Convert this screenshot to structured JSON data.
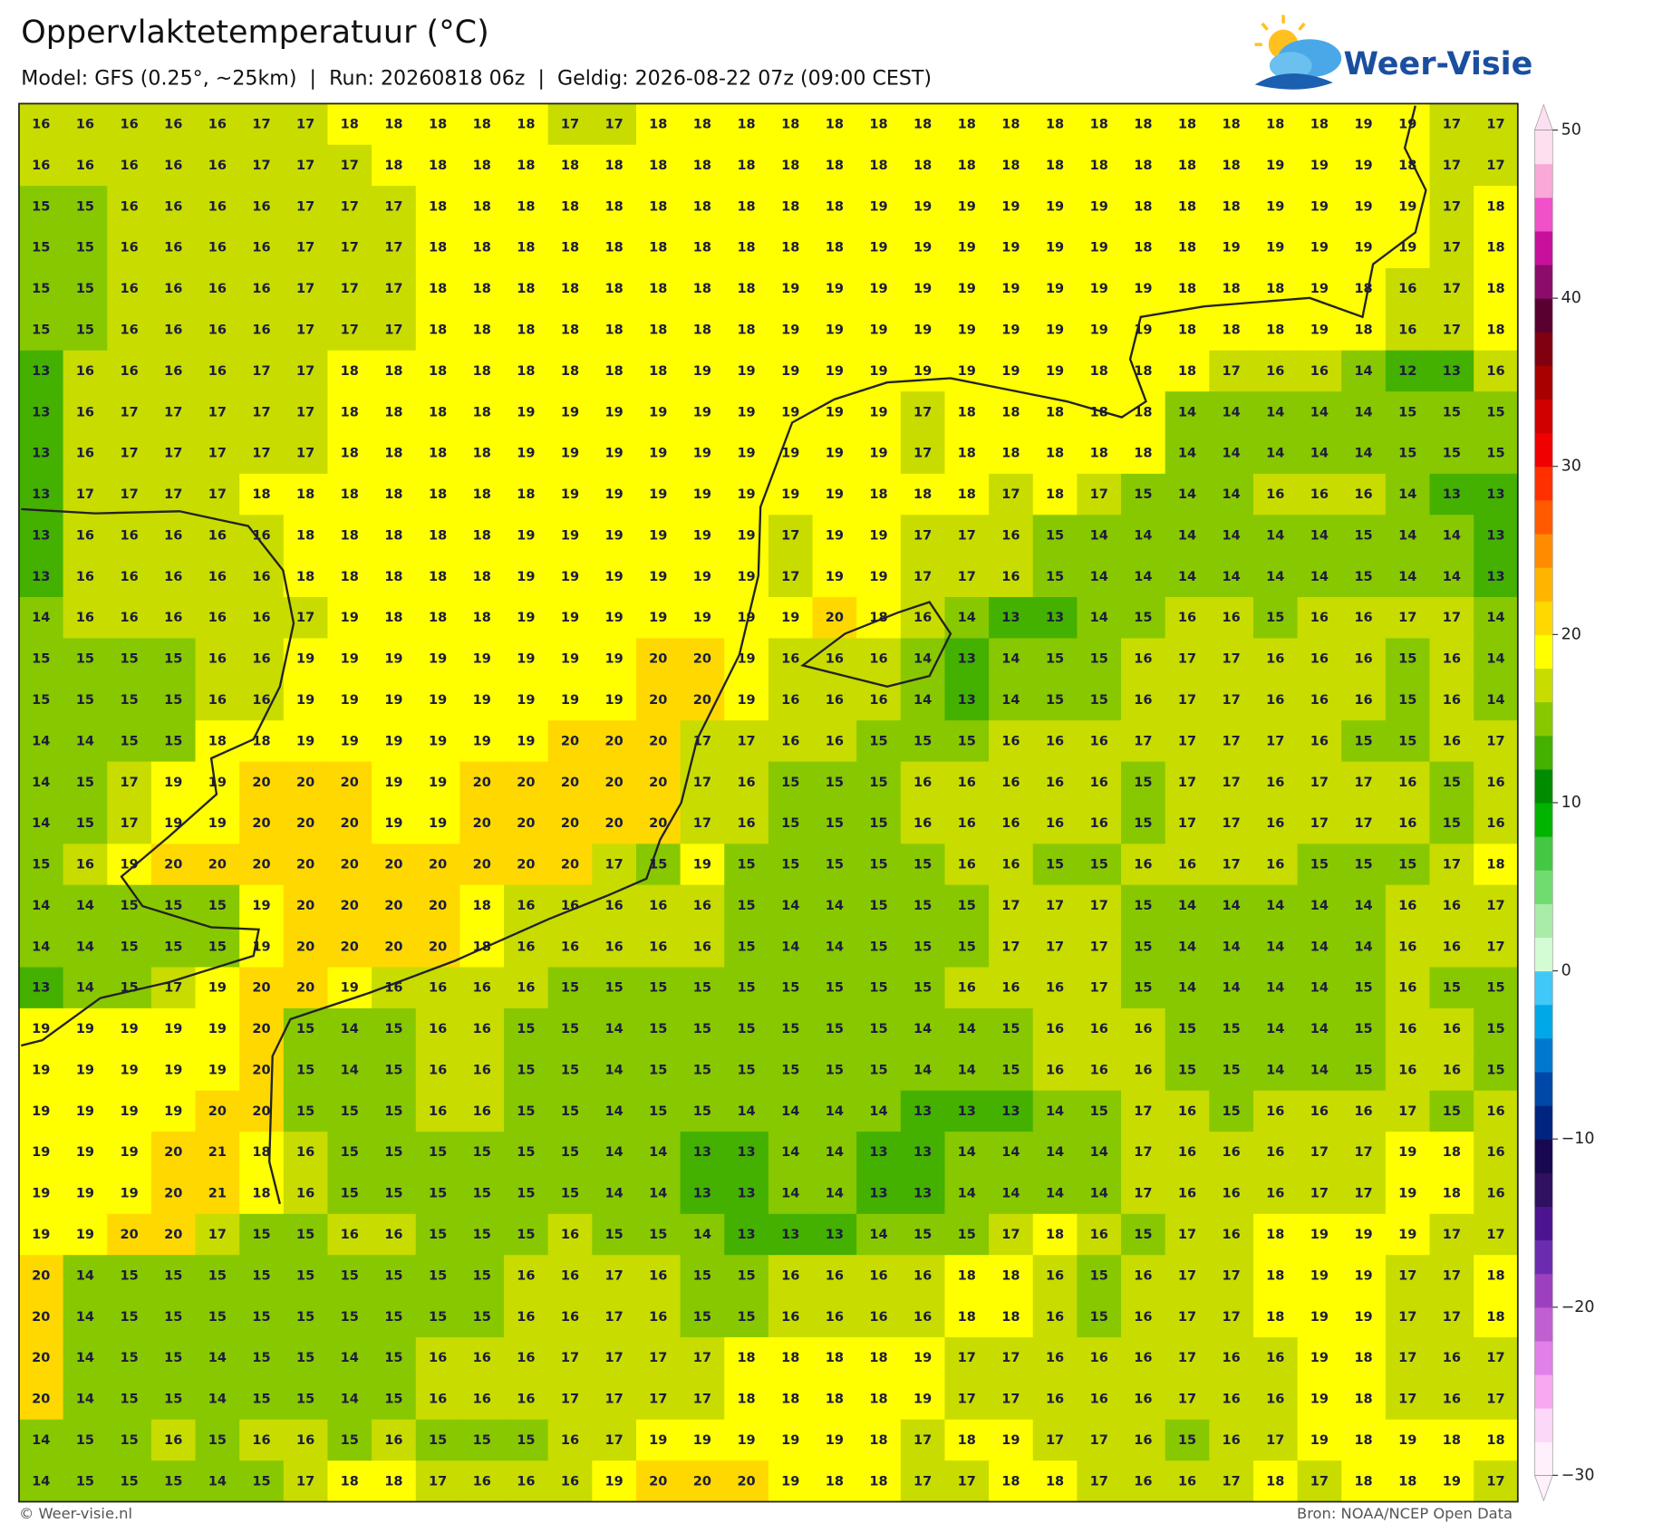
{
  "header": {
    "title": "Oppervlaktetemperatuur (°C)",
    "subtitle": "Model: GFS (0.25°, ~25km)  |  Run: 20260818 06z  |  Geldig: 2026-08-22 07z (09:00 CEST)",
    "logo": "Weer-Visie"
  },
  "map": {
    "values": [
      [
        16,
        16,
        16,
        16,
        16,
        17,
        17,
        18,
        18,
        18,
        18,
        18,
        17,
        17,
        18,
        18,
        18,
        18,
        18,
        18,
        18,
        18,
        18,
        18,
        18,
        18,
        18,
        18,
        18,
        18,
        19,
        19,
        17,
        17
      ],
      [
        16,
        16,
        16,
        16,
        16,
        17,
        17,
        17,
        18,
        18,
        18,
        18,
        18,
        18,
        18,
        18,
        18,
        18,
        18,
        18,
        18,
        18,
        18,
        18,
        18,
        18,
        18,
        18,
        19,
        19,
        19,
        18,
        17,
        17
      ],
      [
        15,
        15,
        16,
        16,
        16,
        16,
        17,
        17,
        17,
        18,
        18,
        18,
        18,
        18,
        18,
        18,
        18,
        18,
        18,
        19,
        19,
        19,
        19,
        19,
        19,
        18,
        18,
        18,
        19,
        19,
        19,
        19,
        17,
        18
      ],
      [
        15,
        15,
        16,
        16,
        16,
        16,
        17,
        17,
        17,
        18,
        18,
        18,
        18,
        18,
        18,
        18,
        18,
        18,
        18,
        19,
        19,
        19,
        19,
        19,
        19,
        18,
        18,
        19,
        19,
        19,
        19,
        19,
        17,
        18
      ],
      [
        15,
        15,
        16,
        16,
        16,
        16,
        17,
        17,
        17,
        18,
        18,
        18,
        18,
        18,
        18,
        18,
        18,
        19,
        19,
        19,
        19,
        19,
        19,
        19,
        19,
        19,
        18,
        18,
        18,
        19,
        18,
        16,
        17,
        18
      ],
      [
        15,
        15,
        16,
        16,
        16,
        16,
        17,
        17,
        17,
        18,
        18,
        18,
        18,
        18,
        18,
        18,
        18,
        19,
        19,
        19,
        19,
        19,
        19,
        19,
        19,
        19,
        18,
        18,
        18,
        19,
        18,
        16,
        17,
        18
      ],
      [
        13,
        16,
        16,
        16,
        16,
        17,
        17,
        18,
        18,
        18,
        18,
        18,
        18,
        18,
        18,
        19,
        19,
        19,
        19,
        19,
        19,
        19,
        19,
        19,
        18,
        18,
        18,
        17,
        16,
        16,
        14,
        12,
        13,
        16
      ],
      [
        13,
        16,
        17,
        17,
        17,
        17,
        17,
        18,
        18,
        18,
        18,
        19,
        19,
        19,
        19,
        19,
        19,
        19,
        19,
        19,
        17,
        18,
        18,
        18,
        18,
        18,
        14,
        14,
        14,
        14,
        14,
        15,
        15,
        15
      ],
      [
        13,
        16,
        17,
        17,
        17,
        17,
        17,
        18,
        18,
        18,
        18,
        19,
        19,
        19,
        19,
        19,
        19,
        19,
        19,
        19,
        17,
        18,
        18,
        18,
        18,
        18,
        14,
        14,
        14,
        14,
        14,
        15,
        15,
        15
      ],
      [
        13,
        17,
        17,
        17,
        17,
        18,
        18,
        18,
        18,
        18,
        18,
        18,
        19,
        19,
        19,
        19,
        19,
        19,
        19,
        18,
        18,
        18,
        17,
        18,
        17,
        15,
        14,
        14,
        16,
        16,
        16,
        14,
        13,
        13
      ],
      [
        13,
        16,
        16,
        16,
        16,
        16,
        18,
        18,
        18,
        18,
        18,
        19,
        19,
        19,
        19,
        19,
        19,
        17,
        19,
        19,
        17,
        17,
        16,
        15,
        14,
        14,
        14,
        14,
        14,
        14,
        15,
        14,
        14,
        13
      ],
      [
        13,
        16,
        16,
        16,
        16,
        16,
        18,
        18,
        18,
        18,
        18,
        19,
        19,
        19,
        19,
        19,
        19,
        17,
        19,
        19,
        17,
        17,
        16,
        15,
        14,
        14,
        14,
        14,
        14,
        14,
        15,
        14,
        14,
        13
      ],
      [
        14,
        16,
        16,
        16,
        16,
        16,
        17,
        19,
        18,
        18,
        18,
        19,
        19,
        19,
        19,
        19,
        19,
        19,
        20,
        18,
        16,
        14,
        13,
        13,
        14,
        15,
        16,
        16,
        15,
        16,
        16,
        17,
        17,
        14
      ],
      [
        15,
        15,
        15,
        15,
        16,
        16,
        19,
        19,
        19,
        19,
        19,
        19,
        19,
        19,
        20,
        20,
        19,
        16,
        16,
        16,
        14,
        13,
        14,
        15,
        15,
        16,
        17,
        17,
        16,
        16,
        16,
        15,
        16,
        14
      ],
      [
        15,
        15,
        15,
        15,
        16,
        16,
        19,
        19,
        19,
        19,
        19,
        19,
        19,
        19,
        20,
        20,
        19,
        16,
        16,
        16,
        14,
        13,
        14,
        15,
        15,
        16,
        17,
        17,
        16,
        16,
        16,
        15,
        16,
        14
      ],
      [
        14,
        14,
        15,
        15,
        18,
        18,
        19,
        19,
        19,
        19,
        19,
        19,
        20,
        20,
        20,
        17,
        17,
        16,
        16,
        15,
        15,
        15,
        16,
        16,
        16,
        17,
        17,
        17,
        17,
        16,
        15,
        15,
        16,
        17
      ],
      [
        14,
        15,
        17,
        19,
        19,
        20,
        20,
        20,
        19,
        19,
        20,
        20,
        20,
        20,
        20,
        17,
        16,
        15,
        15,
        15,
        16,
        16,
        16,
        16,
        16,
        15,
        17,
        17,
        16,
        17,
        17,
        16,
        15,
        16
      ],
      [
        14,
        15,
        17,
        19,
        19,
        20,
        20,
        20,
        19,
        19,
        20,
        20,
        20,
        20,
        20,
        17,
        16,
        15,
        15,
        15,
        16,
        16,
        16,
        16,
        16,
        15,
        17,
        17,
        16,
        17,
        17,
        16,
        15,
        16
      ],
      [
        15,
        16,
        19,
        20,
        20,
        20,
        20,
        20,
        20,
        20,
        20,
        20,
        20,
        17,
        15,
        19,
        15,
        15,
        15,
        15,
        15,
        16,
        16,
        15,
        15,
        16,
        16,
        17,
        16,
        15,
        15,
        15,
        17,
        18
      ],
      [
        14,
        14,
        15,
        15,
        15,
        19,
        20,
        20,
        20,
        20,
        18,
        16,
        16,
        16,
        16,
        16,
        15,
        14,
        14,
        15,
        15,
        15,
        17,
        17,
        17,
        15,
        14,
        14,
        14,
        14,
        14,
        16,
        16,
        17
      ],
      [
        14,
        14,
        15,
        15,
        15,
        19,
        20,
        20,
        20,
        20,
        18,
        16,
        16,
        16,
        16,
        16,
        15,
        14,
        14,
        15,
        15,
        15,
        17,
        17,
        17,
        15,
        14,
        14,
        14,
        14,
        14,
        16,
        16,
        17
      ],
      [
        13,
        14,
        15,
        17,
        19,
        20,
        20,
        19,
        16,
        16,
        16,
        16,
        15,
        15,
        15,
        15,
        15,
        15,
        15,
        15,
        15,
        16,
        16,
        16,
        17,
        15,
        14,
        14,
        14,
        14,
        15,
        16,
        15,
        15
      ],
      [
        19,
        19,
        19,
        19,
        19,
        20,
        15,
        14,
        15,
        16,
        16,
        15,
        15,
        14,
        15,
        15,
        15,
        15,
        15,
        15,
        14,
        14,
        15,
        16,
        16,
        16,
        15,
        15,
        14,
        14,
        15,
        16,
        16,
        15
      ],
      [
        19,
        19,
        19,
        19,
        19,
        20,
        15,
        14,
        15,
        16,
        16,
        15,
        15,
        14,
        15,
        15,
        15,
        15,
        15,
        15,
        14,
        14,
        15,
        16,
        16,
        16,
        15,
        15,
        14,
        14,
        15,
        16,
        16,
        15
      ],
      [
        19,
        19,
        19,
        19,
        20,
        20,
        15,
        15,
        15,
        16,
        16,
        15,
        15,
        14,
        15,
        15,
        14,
        14,
        14,
        14,
        13,
        13,
        13,
        14,
        15,
        17,
        16,
        15,
        16,
        16,
        16,
        17,
        15,
        16
      ],
      [
        19,
        19,
        19,
        20,
        21,
        18,
        16,
        15,
        15,
        15,
        15,
        15,
        15,
        14,
        14,
        13,
        13,
        14,
        14,
        13,
        13,
        14,
        14,
        14,
        14,
        17,
        16,
        16,
        16,
        17,
        17,
        19,
        18,
        16
      ],
      [
        19,
        19,
        19,
        20,
        21,
        18,
        16,
        15,
        15,
        15,
        15,
        15,
        15,
        14,
        14,
        13,
        13,
        14,
        14,
        13,
        13,
        14,
        14,
        14,
        14,
        17,
        16,
        16,
        16,
        17,
        17,
        19,
        18,
        16
      ],
      [
        19,
        19,
        20,
        20,
        17,
        15,
        15,
        16,
        16,
        15,
        15,
        15,
        16,
        15,
        15,
        14,
        13,
        13,
        13,
        14,
        15,
        15,
        17,
        18,
        16,
        15,
        17,
        16,
        18,
        19,
        19,
        19,
        17,
        17
      ],
      [
        20,
        14,
        15,
        15,
        15,
        15,
        15,
        15,
        15,
        15,
        15,
        16,
        16,
        17,
        16,
        15,
        15,
        16,
        16,
        16,
        16,
        18,
        18,
        16,
        15,
        16,
        17,
        17,
        18,
        19,
        19,
        17,
        17,
        18
      ],
      [
        20,
        14,
        15,
        15,
        15,
        15,
        15,
        15,
        15,
        15,
        15,
        16,
        16,
        17,
        16,
        15,
        15,
        16,
        16,
        16,
        16,
        18,
        18,
        16,
        15,
        16,
        17,
        17,
        18,
        19,
        19,
        17,
        17,
        18
      ],
      [
        20,
        14,
        15,
        15,
        14,
        15,
        15,
        14,
        15,
        16,
        16,
        16,
        17,
        17,
        17,
        17,
        18,
        18,
        18,
        18,
        19,
        17,
        17,
        16,
        16,
        16,
        17,
        16,
        16,
        19,
        18,
        17,
        16,
        17
      ],
      [
        20,
        14,
        15,
        15,
        14,
        15,
        15,
        14,
        15,
        16,
        16,
        16,
        17,
        17,
        17,
        17,
        18,
        18,
        18,
        18,
        19,
        17,
        17,
        16,
        16,
        16,
        17,
        16,
        16,
        19,
        18,
        17,
        16,
        17
      ],
      [
        14,
        15,
        15,
        16,
        15,
        16,
        16,
        15,
        16,
        15,
        15,
        15,
        16,
        17,
        19,
        19,
        19,
        19,
        19,
        18,
        17,
        18,
        19,
        17,
        17,
        16,
        15,
        16,
        17,
        19,
        18,
        19,
        18,
        18
      ],
      [
        14,
        15,
        15,
        15,
        14,
        15,
        17,
        18,
        18,
        17,
        16,
        16,
        16,
        19,
        20,
        20,
        20,
        19,
        18,
        18,
        17,
        17,
        18,
        18,
        17,
        16,
        16,
        17,
        18,
        17,
        18,
        18,
        19,
        17
      ]
    ]
  },
  "colorbar": {
    "lim": [
      -30,
      50
    ],
    "colors": [
      "#fff0fc",
      "#fcd8f8",
      "#f8a8f0",
      "#e080e8",
      "#c060d0",
      "#9c40c0",
      "#6c2cb0",
      "#4c1490",
      "#301060",
      "#180850",
      "#002480",
      "#0048a8",
      "#0078d0",
      "#00a8e8",
      "#40c8f8",
      "#d4fcd4",
      "#a8eca8",
      "#70dc70",
      "#44c844",
      "#00b400",
      "#008c00",
      "#44b000",
      "#88c800",
      "#c8dc00",
      "#ffff00",
      "#ffd800",
      "#ffb400",
      "#ff8c00",
      "#ff5a00",
      "#ff3000",
      "#f00000",
      "#d00000",
      "#a80000",
      "#800010",
      "#5a0030",
      "#8c0c6c",
      "#c8109c",
      "#f050c8",
      "#f9a8d8",
      "#fce0f0"
    ],
    "ticks": [
      50,
      40,
      30,
      20,
      10,
      0,
      {
        "value": -10,
        "label": "−10"
      },
      {
        "value": -20,
        "label": "−20"
      },
      {
        "value": -30,
        "label": "−30"
      }
    ]
  },
  "footer": {
    "left": "© Weer-visie.nl",
    "right": "Bron: NOAA/NCEP Open Data"
  }
}
